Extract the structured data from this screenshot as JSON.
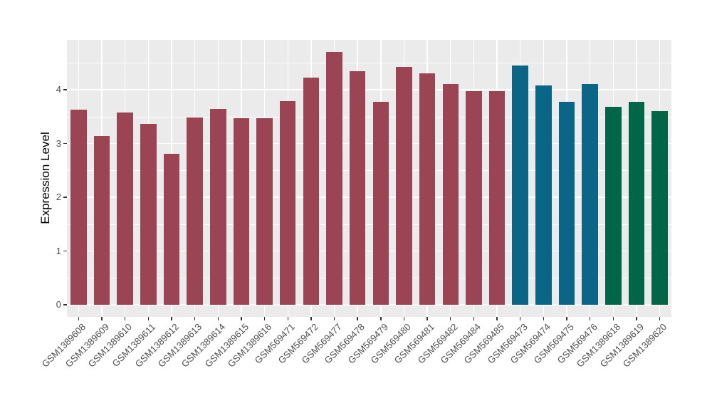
{
  "chart_data": {
    "type": "bar",
    "title": "",
    "xlabel": "",
    "ylabel": "Expression Level",
    "ylim": [
      0,
      4.96
    ],
    "yticks": [
      "0",
      "1",
      "2",
      "3",
      "4"
    ],
    "ytick_values": [
      0,
      1,
      2,
      3,
      4
    ],
    "ytick_minor_values": [
      0.5,
      1.5,
      2.5,
      3.5,
      4.5
    ],
    "grid": "white major+minor horizontal lines and major vertical lines on grey panel",
    "legend_position": "none",
    "x_label_rotation_deg": 45,
    "categories": [
      "GSM1389608",
      "GSM1389609",
      "GSM1389610",
      "GSM1389611",
      "GSM1389612",
      "GSM1389613",
      "GSM1389614",
      "GSM1389615",
      "GSM1389616",
      "GSM569471",
      "GSM569472",
      "GSM569477",
      "GSM569478",
      "GSM569479",
      "GSM569480",
      "GSM569481",
      "GSM569482",
      "GSM569484",
      "GSM569485",
      "GSM569473",
      "GSM569474",
      "GSM569475",
      "GSM569476",
      "GSM1389618",
      "GSM1389619",
      "GSM1389620"
    ],
    "values": [
      3.63,
      3.14,
      3.57,
      3.37,
      2.81,
      3.48,
      3.64,
      3.47,
      3.47,
      3.79,
      4.23,
      4.7,
      4.35,
      3.77,
      4.42,
      4.3,
      4.1,
      3.98,
      3.98,
      4.45,
      4.08,
      3.77,
      4.1,
      3.68,
      3.77,
      3.6
    ],
    "bar_groups": [
      "maroon",
      "maroon",
      "maroon",
      "maroon",
      "maroon",
      "maroon",
      "maroon",
      "maroon",
      "maroon",
      "maroon",
      "maroon",
      "maroon",
      "maroon",
      "maroon",
      "maroon",
      "maroon",
      "maroon",
      "maroon",
      "maroon",
      "teal",
      "teal",
      "teal",
      "teal",
      "green",
      "green",
      "green"
    ],
    "palette": {
      "maroon": "#9B4453",
      "teal": "#0A6587",
      "green": "#006647"
    },
    "colors": {
      "panel_background": "#EBEBEB",
      "gridline": "#FFFFFF",
      "tick_mark": "#333333",
      "tick_label": "#4D4D4D",
      "axis_title": "#000000",
      "figure_background": "#FFFFFF"
    }
  }
}
